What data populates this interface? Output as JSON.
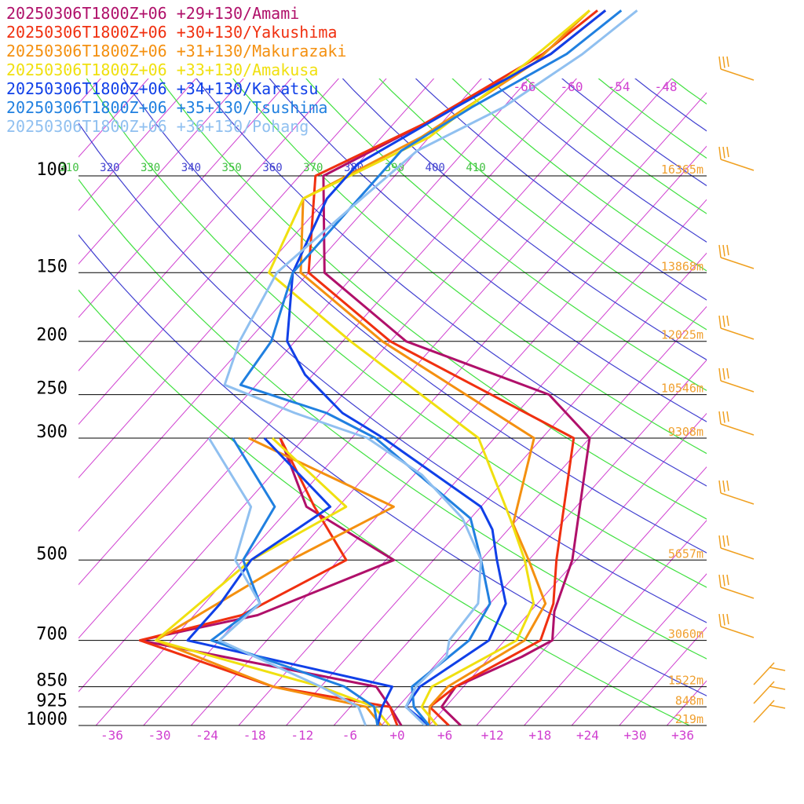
{
  "chart_data": {
    "type": "line",
    "chart_kind": "Skew-T log-P sounding",
    "legend": [
      {
        "text": "20250306T1800Z+06 +29+130/Amami",
        "color": "#b0106a"
      },
      {
        "text": "20250306T1800Z+06 +30+130/Yakushima",
        "color": "#f03010"
      },
      {
        "text": "20250306T1800Z+06 +31+130/Makurazaki",
        "color": "#f49010"
      },
      {
        "text": "20250306T1800Z+06 +33+130/Amakusa",
        "color": "#f0e010"
      },
      {
        "text": "20250306T1800Z+06 +34+130/Karatsu",
        "color": "#1040e8"
      },
      {
        "text": "20250306T1800Z+06 +35+130/Tsushima",
        "color": "#2080e0"
      },
      {
        "text": "20250306T1800Z+06 +36+130/Pohang",
        "color": "#90c0f0"
      }
    ],
    "pressure_levels": [
      {
        "p": 1000,
        "label": "1000",
        "height": "219m"
      },
      {
        "p": 925,
        "label": "925",
        "height": "848m"
      },
      {
        "p": 850,
        "label": "850",
        "height": "1522m"
      },
      {
        "p": 700,
        "label": "700",
        "height": "3060m"
      },
      {
        "p": 500,
        "label": "500",
        "height": "5657m"
      },
      {
        "p": 300,
        "label": "300",
        "height": "9308m"
      },
      {
        "p": 250,
        "label": "250",
        "height": "10546m"
      },
      {
        "p": 200,
        "label": "200",
        "height": "12025m"
      },
      {
        "p": 150,
        "label": "150",
        "height": "13868m"
      },
      {
        "p": 100,
        "label": "100",
        "height": "16365m"
      }
    ],
    "x_ticks": [
      -36,
      -30,
      -24,
      -18,
      -12,
      -6,
      0,
      6,
      12,
      18,
      24,
      30,
      36
    ],
    "x_tick_labels": [
      "-36",
      "-30",
      "-24",
      "-18",
      "-12",
      "-6",
      "+0",
      "+6",
      "+12",
      "+18",
      "+24",
      "+30",
      "+36"
    ],
    "upper_temp_labels": [
      "-66",
      "-60",
      "-54",
      "-48"
    ],
    "theta_labels": [
      {
        "text": "310",
        "color": "#40c040"
      },
      {
        "text": "320",
        "color": "#4040d0"
      },
      {
        "text": "330",
        "color": "#40c040"
      },
      {
        "text": "340",
        "color": "#4040d0"
      },
      {
        "text": "350",
        "color": "#40c040"
      },
      {
        "text": "360",
        "color": "#4040d0"
      },
      {
        "text": "370",
        "color": "#40c040"
      },
      {
        "text": "380",
        "color": "#4040d0"
      },
      {
        "text": "390",
        "color": "#40c040"
      },
      {
        "text": "400",
        "color": "#4040d0"
      },
      {
        "text": "410",
        "color": "#40c040"
      }
    ],
    "series": [
      {
        "name": "Amami",
        "color": "#b0106a",
        "points": [
          [
            1000,
            8
          ],
          [
            925,
            3.5
          ],
          [
            850,
            3
          ],
          [
            750,
            8
          ],
          [
            700,
            10
          ],
          [
            620,
            7
          ],
          [
            500,
            3.5
          ],
          [
            300,
            -8
          ],
          [
            250,
            -18
          ],
          [
            200,
            -42
          ],
          [
            150,
            -60
          ],
          [
            100,
            -71
          ],
          [
            80,
            -64
          ],
          [
            60,
            -56
          ],
          [
            50,
            -54
          ]
        ]
      },
      {
        "name": "Yakushima",
        "color": "#f03010",
        "points": [
          [
            1000,
            6.5
          ],
          [
            925,
            2
          ],
          [
            850,
            3
          ],
          [
            700,
            8.5
          ],
          [
            600,
            6
          ],
          [
            500,
            1.5
          ],
          [
            300,
            -10
          ],
          [
            200,
            -44
          ],
          [
            150,
            -62
          ],
          [
            100,
            -72
          ],
          [
            80,
            -64
          ],
          [
            60,
            -57
          ],
          [
            50,
            -55
          ]
        ]
      },
      {
        "name": "Makurazaki",
        "color": "#f49010",
        "points": [
          [
            1000,
            4
          ],
          [
            925,
            2
          ],
          [
            850,
            2
          ],
          [
            700,
            6.5
          ],
          [
            600,
            5
          ],
          [
            500,
            -2
          ],
          [
            430,
            -8
          ],
          [
            300,
            -15
          ],
          [
            200,
            -45
          ],
          [
            150,
            -63
          ],
          [
            110,
            -71
          ],
          [
            85,
            -63
          ],
          [
            62,
            -57
          ],
          [
            50,
            -56
          ]
        ]
      },
      {
        "name": "Amakusa",
        "color": "#f0e010",
        "points": [
          [
            1000,
            5
          ],
          [
            925,
            1
          ],
          [
            850,
            0
          ],
          [
            700,
            5.5
          ],
          [
            600,
            3.5
          ],
          [
            500,
            -2.5
          ],
          [
            420,
            -9
          ],
          [
            300,
            -22
          ],
          [
            200,
            -49
          ],
          [
            150,
            -67
          ],
          [
            110,
            -71
          ],
          [
            85,
            -62
          ],
          [
            62,
            -58
          ],
          [
            50,
            -56
          ]
        ]
      },
      {
        "name": "Karatsu",
        "color": "#1040e8",
        "points": [
          [
            1000,
            4
          ],
          [
            925,
            -1
          ],
          [
            850,
            -1.5
          ],
          [
            700,
            2
          ],
          [
            600,
            0
          ],
          [
            500,
            -6
          ],
          [
            440,
            -10
          ],
          [
            400,
            -14
          ],
          [
            300,
            -34
          ],
          [
            270,
            -42
          ],
          [
            230,
            -51
          ],
          [
            200,
            -57
          ],
          [
            150,
            -64
          ],
          [
            110,
            -68
          ],
          [
            95,
            -68
          ],
          [
            75,
            -62
          ],
          [
            60,
            -56
          ],
          [
            50,
            -54
          ]
        ]
      },
      {
        "name": "Tsushima",
        "color": "#2080e0",
        "points": [
          [
            1000,
            4
          ],
          [
            925,
            0
          ],
          [
            850,
            -2.5
          ],
          [
            700,
            -0.5
          ],
          [
            600,
            -2
          ],
          [
            500,
            -8
          ],
          [
            420,
            -14
          ],
          [
            300,
            -35
          ],
          [
            270,
            -44
          ],
          [
            240,
            -58
          ],
          [
            200,
            -59
          ],
          [
            150,
            -64
          ],
          [
            110,
            -64
          ],
          [
            90,
            -64
          ],
          [
            75,
            -60
          ],
          [
            60,
            -54
          ],
          [
            50,
            -52
          ]
        ]
      },
      {
        "name": "Pohang",
        "color": "#90c0f0",
        "points": [
          [
            1000,
            3.5
          ],
          [
            925,
            -1
          ],
          [
            850,
            -2
          ],
          [
            750,
            -1.5
          ],
          [
            700,
            -3
          ],
          [
            600,
            -3.5
          ],
          [
            500,
            -8
          ],
          [
            420,
            -15
          ],
          [
            350,
            -25
          ],
          [
            300,
            -36
          ],
          [
            270,
            -48
          ],
          [
            240,
            -60
          ],
          [
            200,
            -63
          ],
          [
            150,
            -66
          ],
          [
            115,
            -64
          ],
          [
            90,
            -62
          ],
          [
            75,
            -56
          ],
          [
            60,
            -52
          ],
          [
            50,
            -50
          ]
        ]
      }
    ],
    "dewpoint_series": [
      {
        "name": "Amami",
        "color": "#b0106a",
        "points": [
          [
            1000,
            0.5
          ],
          [
            925,
            -3
          ],
          [
            850,
            -7
          ],
          [
            700,
            -42
          ],
          [
            630,
            -30
          ],
          [
            500,
            -19
          ],
          [
            400,
            -36
          ],
          [
            300,
            -47
          ]
        ]
      },
      {
        "name": "Yakushima",
        "color": "#f03010",
        "points": [
          [
            1000,
            0
          ],
          [
            925,
            -3
          ],
          [
            850,
            -20
          ],
          [
            700,
            -42
          ],
          [
            630,
            -32
          ],
          [
            500,
            -25
          ],
          [
            400,
            -35
          ],
          [
            300,
            -47
          ]
        ]
      },
      {
        "name": "Makurazaki",
        "color": "#f49010",
        "points": [
          [
            1000,
            -2
          ],
          [
            925,
            -6
          ],
          [
            850,
            -20
          ],
          [
            700,
            -40
          ],
          [
            500,
            -32
          ],
          [
            400,
            -25
          ],
          [
            300,
            -51
          ]
        ]
      },
      {
        "name": "Amakusa",
        "color": "#f0e010",
        "points": [
          [
            1000,
            -1
          ],
          [
            925,
            -5
          ],
          [
            850,
            -14
          ],
          [
            700,
            -40
          ],
          [
            500,
            -37
          ],
          [
            400,
            -31
          ],
          [
            300,
            -48
          ]
        ]
      },
      {
        "name": "Karatsu",
        "color": "#1040e8",
        "points": [
          [
            1000,
            -2.5
          ],
          [
            925,
            -4
          ],
          [
            850,
            -5
          ],
          [
            700,
            -36
          ],
          [
            600,
            -36
          ],
          [
            500,
            -37
          ],
          [
            400,
            -33
          ],
          [
            300,
            -49
          ]
        ]
      },
      {
        "name": "Tsushima",
        "color": "#2080e0",
        "points": [
          [
            1000,
            -2.5
          ],
          [
            925,
            -5
          ],
          [
            850,
            -11
          ],
          [
            700,
            -33
          ],
          [
            600,
            -31
          ],
          [
            500,
            -38
          ],
          [
            400,
            -40
          ],
          [
            300,
            -53
          ]
        ]
      },
      {
        "name": "Pohang",
        "color": "#90c0f0",
        "points": [
          [
            1000,
            -4
          ],
          [
            925,
            -7
          ],
          [
            850,
            -14
          ],
          [
            700,
            -32
          ],
          [
            600,
            -31
          ],
          [
            500,
            -39
          ],
          [
            400,
            -43
          ],
          [
            300,
            -56
          ]
        ]
      }
    ]
  }
}
